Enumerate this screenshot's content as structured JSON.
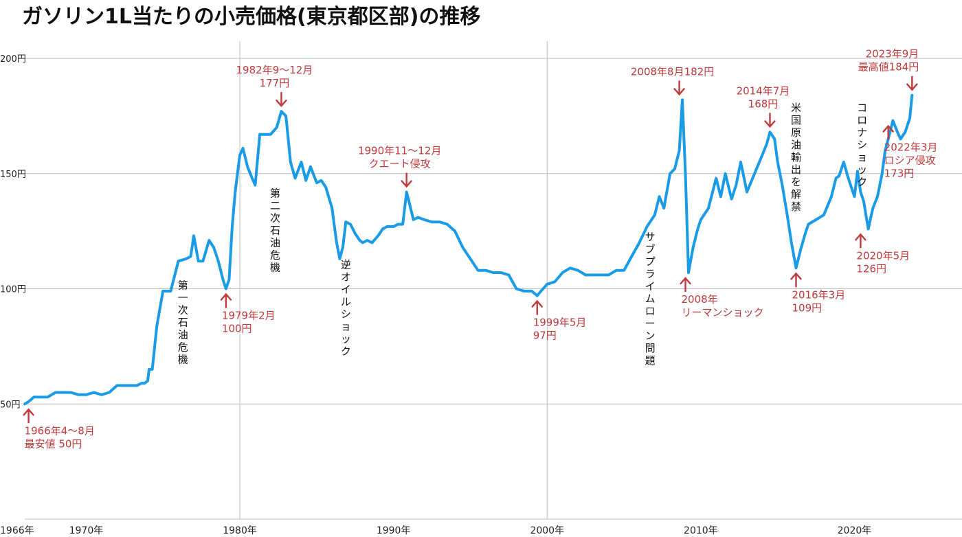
{
  "chart_data": {
    "type": "line",
    "title": "ガソリン1L当たりの小売価格(東京都区部)の推移",
    "xlabel": "",
    "ylabel": "",
    "xlim": [
      1966.0,
      2027.0
    ],
    "ylim": [
      0,
      200
    ],
    "grid": true,
    "legend": "none",
    "line_color": "#1a9be8",
    "annotation_color": "#c0393b",
    "y_ticks": [
      {
        "value": 200,
        "label": "200円"
      },
      {
        "value": 150,
        "label": "150円"
      },
      {
        "value": 100,
        "label": "100円"
      },
      {
        "value": 50,
        "label": "50円"
      }
    ],
    "x_ticks": [
      {
        "value": 1966.0,
        "label": "1966年"
      },
      {
        "value": 1970.0,
        "label": "1970年"
      },
      {
        "value": 1980.0,
        "label": "1980年"
      },
      {
        "value": 1990.0,
        "label": "1990年"
      },
      {
        "value": 2000.0,
        "label": "2000年"
      },
      {
        "value": 2010.0,
        "label": "2010年"
      },
      {
        "value": 2020.0,
        "label": "2020年"
      }
    ],
    "vertical_grid_years": [
      1980,
      2000
    ],
    "series": [
      {
        "x": [
          1966.0,
          1966.25,
          1966.6,
          1967.0,
          1967.5,
          1968.0,
          1968.5,
          1969.0,
          1969.5,
          1970.0,
          1970.5,
          1971.0,
          1971.5,
          1972.0,
          1972.5,
          1973.0,
          1973.3,
          1973.6,
          1973.8,
          1974.0,
          1974.1,
          1974.3,
          1974.6,
          1975.0,
          1975.5,
          1976.0,
          1976.5,
          1976.8,
          1977.0,
          1977.3,
          1977.6,
          1978.0,
          1978.3,
          1978.6,
          1978.9,
          1979.1,
          1979.3,
          1979.5,
          1979.7,
          1980.0,
          1980.2,
          1980.5,
          1980.8,
          1981.0,
          1981.3,
          1981.6,
          1982.0,
          1982.4,
          1982.7,
          1983.0,
          1983.3,
          1983.6,
          1984.0,
          1984.3,
          1984.6,
          1985.0,
          1985.3,
          1985.6,
          1986.0,
          1986.3,
          1986.5,
          1986.7,
          1986.9,
          1987.2,
          1987.5,
          1987.8,
          1988.0,
          1988.3,
          1988.6,
          1989.0,
          1989.3,
          1989.6,
          1990.0,
          1990.3,
          1990.6,
          1990.85,
          1991.0,
          1991.3,
          1991.6,
          1992.0,
          1992.5,
          1993.0,
          1993.5,
          1994.0,
          1994.5,
          1995.0,
          1995.5,
          1996.0,
          1996.5,
          1997.0,
          1997.5,
          1998.0,
          1998.5,
          1999.0,
          1999.35,
          1999.6,
          2000.0,
          2000.5,
          2001.0,
          2001.5,
          2002.0,
          2002.5,
          2003.0,
          2003.5,
          2004.0,
          2004.5,
          2005.0,
          2005.5,
          2006.0,
          2006.5,
          2007.0,
          2007.3,
          2007.6,
          2008.0,
          2008.3,
          2008.6,
          2008.8,
          2009.0,
          2009.2,
          2009.5,
          2009.8,
          2010.0,
          2010.5,
          2011.0,
          2011.3,
          2011.6,
          2012.0,
          2012.3,
          2012.6,
          2013.0,
          2013.5,
          2014.0,
          2014.3,
          2014.5,
          2014.8,
          2015.0,
          2015.3,
          2015.6,
          2015.9,
          2016.2,
          2016.5,
          2016.8,
          2017.0,
          2017.5,
          2018.0,
          2018.5,
          2018.8,
          2019.0,
          2019.3,
          2019.6,
          2020.0,
          2020.2,
          2020.4,
          2020.6,
          2020.9,
          2021.2,
          2021.5,
          2021.8,
          2022.0,
          2022.2,
          2022.5,
          2022.8,
          2023.0,
          2023.3,
          2023.6,
          2023.75
        ],
        "y": [
          50,
          51,
          53,
          53,
          53,
          55,
          55,
          55,
          54,
          54,
          55,
          54,
          55,
          58,
          58,
          58,
          58,
          59,
          59,
          60,
          65,
          65,
          84,
          99,
          99,
          112,
          113,
          114,
          123,
          112,
          112,
          121,
          118,
          112,
          104,
          100,
          104,
          127,
          142,
          158,
          161,
          153,
          148,
          145,
          167,
          167,
          167,
          170,
          177,
          175,
          155,
          148,
          155,
          147,
          153,
          146,
          147,
          144,
          135,
          120,
          113,
          118,
          129,
          128,
          124,
          121,
          120,
          121,
          120,
          123,
          126,
          127,
          127,
          128,
          128,
          142,
          138,
          130,
          131,
          130,
          129,
          129,
          128,
          125,
          118,
          113,
          108,
          108,
          107,
          107,
          106,
          100,
          99,
          99,
          97,
          99,
          102,
          103,
          107,
          109,
          108,
          106,
          106,
          106,
          106,
          108,
          108,
          114,
          120,
          127,
          132,
          140,
          135,
          150,
          152,
          160,
          182,
          150,
          107,
          118,
          126,
          130,
          135,
          148,
          140,
          150,
          139,
          145,
          155,
          142,
          150,
          158,
          163,
          168,
          165,
          155,
          145,
          133,
          120,
          109,
          117,
          124,
          128,
          130,
          132,
          140,
          148,
          149,
          155,
          148,
          140,
          151,
          142,
          138,
          126,
          135,
          140,
          150,
          160,
          165,
          173,
          168,
          165,
          168,
          174,
          184
        ]
      }
    ],
    "annotations": [
      {
        "label": [
          "1966年4～8月",
          "最安値 50円"
        ],
        "x": 1966.25,
        "y": 50,
        "arrow": "up"
      },
      {
        "label": [
          "1979年2月",
          "100円"
        ],
        "x": 1979.1,
        "y": 100,
        "arrow": "up"
      },
      {
        "label": [
          "1982年9～12月",
          "177円"
        ],
        "x": 1982.7,
        "y": 177,
        "arrow": "down"
      },
      {
        "label": [
          "1990年11～12月",
          "クエート侵攻"
        ],
        "x": 1990.85,
        "y": 142,
        "arrow": "down"
      },
      {
        "label": [
          "1999年5月",
          "97円"
        ],
        "x": 1999.35,
        "y": 97,
        "arrow": "up"
      },
      {
        "label": [
          "2008年8月182円"
        ],
        "x": 2008.6,
        "y": 182,
        "arrow": "down"
      },
      {
        "label": [
          "2008年",
          "リーマンショック"
        ],
        "x": 2009.0,
        "y": 107,
        "arrow": "up"
      },
      {
        "label": [
          "2014年7月",
          "168円"
        ],
        "x": 2014.5,
        "y": 168,
        "arrow": "down"
      },
      {
        "label": [
          "2016年3月",
          "109円"
        ],
        "x": 2016.2,
        "y": 109,
        "arrow": "up"
      },
      {
        "label": [
          "2020年5月",
          "126円"
        ],
        "x": 2020.4,
        "y": 126,
        "arrow": "up"
      },
      {
        "label": [
          "2022年3月",
          "ロシア侵攻",
          "173円"
        ],
        "x": 2022.2,
        "y": 173,
        "arrow": "up"
      },
      {
        "label": [
          "2023年9月",
          "最高値184円"
        ],
        "x": 2023.75,
        "y": 184,
        "arrow": "down"
      }
    ],
    "event_labels": [
      {
        "text": "第一次石油危機",
        "x": 1976.3,
        "y": 100
      },
      {
        "text": "第二次石油危機",
        "x": 1982.3,
        "y": 140
      },
      {
        "text": "逆オイルショック",
        "x": 1986.9,
        "y": 109
      },
      {
        "text": "サブプライムローン問題",
        "x": 2006.7,
        "y": 121
      },
      {
        "text": "米国原油輸出を解禁",
        "x": 2016.2,
        "y": 177
      },
      {
        "text": "コロナショック",
        "x": 2020.5,
        "y": 177
      }
    ]
  }
}
